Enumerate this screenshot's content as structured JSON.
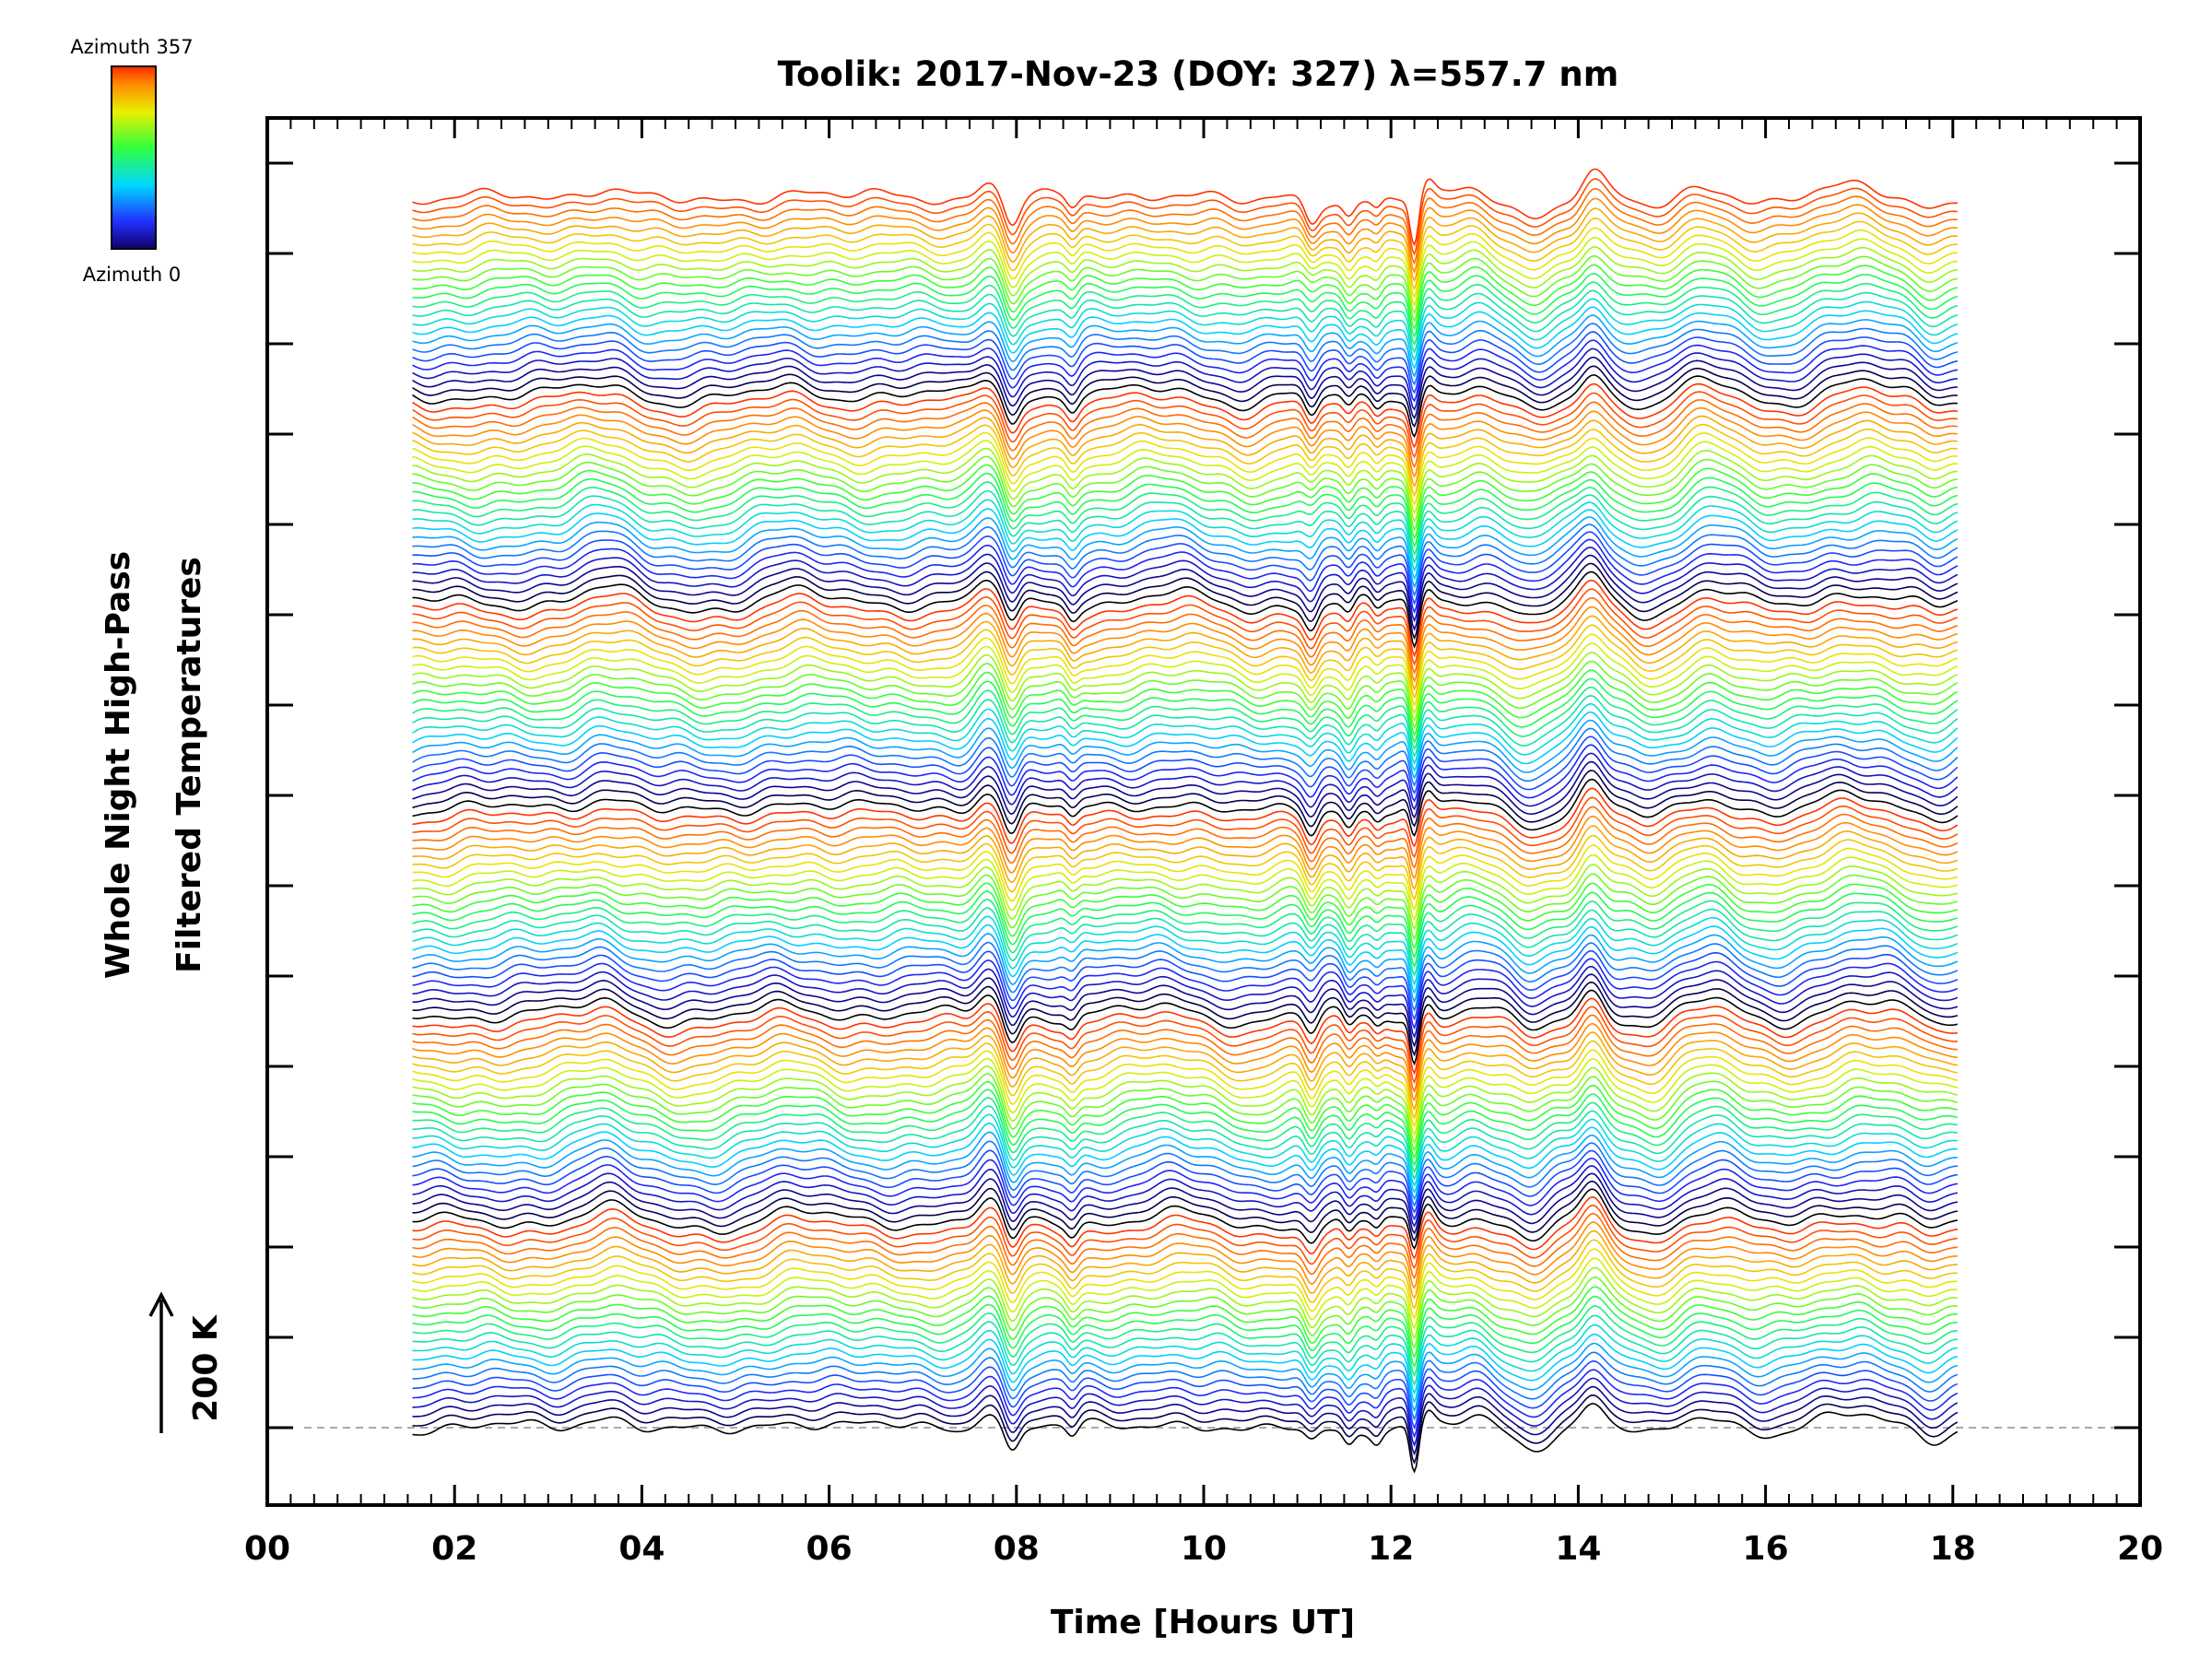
{
  "chart_data": {
    "type": "line",
    "title": "Toolik: 2017-Nov-23 (DOY: 327) λ=557.7 nm",
    "xlabel": "Time [Hours UT]",
    "ylabel_line1": "Whole Night High-Pass",
    "ylabel_line2": "Filtered Temperatures",
    "xlim": [
      0,
      20
    ],
    "x_ticks": [
      0,
      2,
      4,
      6,
      8,
      10,
      12,
      14,
      16,
      18,
      20
    ],
    "x_tick_labels": [
      "00",
      "02",
      "04",
      "06",
      "08",
      "10",
      "12",
      "14",
      "16",
      "18",
      "20"
    ],
    "data_time_range": [
      1.55,
      18.05
    ],
    "scale_bar_label": "200 K",
    "colorbar": {
      "top_label": "Azimuth 357",
      "bottom_label": "Azimuth 0",
      "azimuth_range": [
        0,
        357
      ]
    },
    "series_count": 144,
    "series_per_color_cycle": 24,
    "stacked_traces": true,
    "features_hours_ut": [
      {
        "time": 7.8,
        "type": "sharp peak then drop"
      },
      {
        "time": 8.6,
        "type": "dip"
      },
      {
        "time": 11.15,
        "type": "deep dip"
      },
      {
        "time": 11.55,
        "type": "dip"
      },
      {
        "time": 12.25,
        "type": "deepest dip"
      },
      {
        "time": 13.5,
        "type": "trough"
      },
      {
        "time": 14.15,
        "type": "sharp peak"
      },
      {
        "time": 15.4,
        "type": "peak"
      },
      {
        "time": 17.0,
        "type": "broad peak"
      }
    ]
  }
}
